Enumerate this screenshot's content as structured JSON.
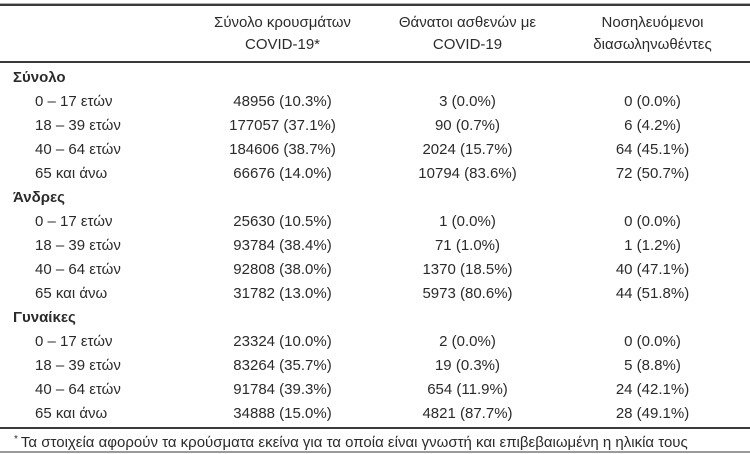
{
  "colors": {
    "background": "#ffffff",
    "text": "#2b2b2b",
    "rule_dark": "#3a3a3a",
    "rule_light": "#b0b0b0",
    "rule_bottom": "#9a9a9a"
  },
  "table": {
    "headers": [
      {
        "line1": "Σύνολο κρουσμάτων",
        "line2": "COVID-19*"
      },
      {
        "line1": "Θάνατοι ασθενών με",
        "line2": "COVID-19"
      },
      {
        "line1": "Νοσηλευόμενοι",
        "line2": "διασωληνωθέντες"
      }
    ],
    "groups": [
      {
        "label": "Σύνολο",
        "rows": [
          {
            "label": "0 – 17 ετών",
            "cases": "48956 (10.3%)",
            "deaths": "3 (0.0%)",
            "intubated": "0 (0.0%)"
          },
          {
            "label": "18 – 39 ετών",
            "cases": "177057 (37.1%)",
            "deaths": "90 (0.7%)",
            "intubated": "6 (4.2%)"
          },
          {
            "label": "40 – 64 ετών",
            "cases": "184606 (38.7%)",
            "deaths": "2024 (15.7%)",
            "intubated": "64 (45.1%)"
          },
          {
            "label": "65 και άνω",
            "cases": "66676 (14.0%)",
            "deaths": "10794 (83.6%)",
            "intubated": "72 (50.7%)"
          }
        ]
      },
      {
        "label": "Άνδρες",
        "rows": [
          {
            "label": "0 – 17 ετών",
            "cases": "25630 (10.5%)",
            "deaths": "1 (0.0%)",
            "intubated": "0 (0.0%)"
          },
          {
            "label": "18 – 39 ετών",
            "cases": "93784 (38.4%)",
            "deaths": "71 (1.0%)",
            "intubated": "1 (1.2%)"
          },
          {
            "label": "40 – 64 ετών",
            "cases": "92808 (38.0%)",
            "deaths": "1370 (18.5%)",
            "intubated": "40 (47.1%)"
          },
          {
            "label": "65 και άνω",
            "cases": "31782 (13.0%)",
            "deaths": "5973 (80.6%)",
            "intubated": "44 (51.8%)"
          }
        ]
      },
      {
        "label": "Γυναίκες",
        "rows": [
          {
            "label": "0 – 17 ετών",
            "cases": "23324 (10.0%)",
            "deaths": "2 (0.0%)",
            "intubated": "0 (0.0%)"
          },
          {
            "label": "18 – 39 ετών",
            "cases": "83264 (35.7%)",
            "deaths": "19 (0.3%)",
            "intubated": "5 (8.8%)"
          },
          {
            "label": "40 – 64 ετών",
            "cases": "91784 (39.3%)",
            "deaths": "654 (11.9%)",
            "intubated": "24 (42.1%)"
          },
          {
            "label": "65 και άνω",
            "cases": "34888 (15.0%)",
            "deaths": "4821 (87.7%)",
            "intubated": "28 (49.1%)"
          }
        ]
      }
    ],
    "footnote": {
      "marker": "*",
      "text": "Τα στοιχεία αφορούν τα κρούσματα εκείνα για τα οποία είναι γνωστή και επιβεβαιωμένη η ηλικία τους"
    }
  }
}
